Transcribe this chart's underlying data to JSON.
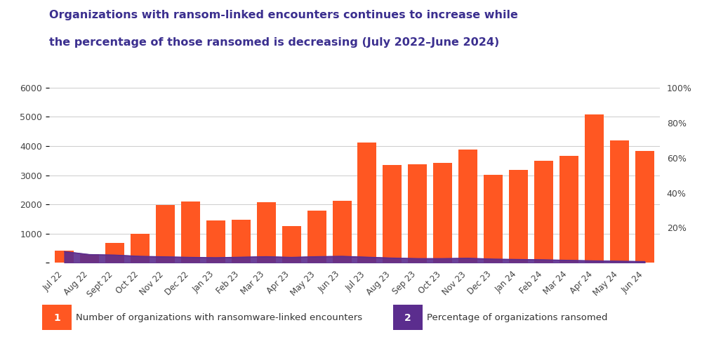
{
  "title_line1": "Organizations with ransom-linked encounters continues to increase while",
  "title_line2": "the percentage of those ransomed is decreasing (July 2022–June 2024)",
  "categories": [
    "Jul 22",
    "Aug 22",
    "Sept 22",
    "Oct 22",
    "Nov 22",
    "Dec 22",
    "Jan 23",
    "Feb 23",
    "Mar 23",
    "Apr 23",
    "May 23",
    "Jun 23",
    "Jul 23",
    "Aug 23",
    "Sep 23",
    "Oct 23",
    "Nov 23",
    "Dec 23",
    "Jan 24",
    "Feb 24",
    "Mar 24",
    "Apr 24",
    "May 24",
    "Jun 24"
  ],
  "bar_values": [
    420,
    300,
    680,
    1000,
    1980,
    2110,
    1450,
    1480,
    2080,
    1270,
    1780,
    2130,
    4120,
    3350,
    3380,
    3430,
    3880,
    3010,
    3190,
    3500,
    3670,
    5090,
    4200,
    3820
  ],
  "line_values": [
    6.5,
    4.8,
    4.5,
    3.8,
    3.5,
    3.2,
    3.0,
    3.3,
    3.6,
    3.2,
    3.6,
    3.8,
    3.3,
    2.8,
    2.5,
    2.5,
    2.7,
    2.2,
    2.0,
    1.8,
    1.5,
    1.2,
    1.0,
    0.8
  ],
  "bar_color": "#FF5722",
  "line_color": "#5B2D8E",
  "background_color": "#FFFFFF",
  "title_color": "#3B2F8F",
  "left_ylim": [
    0,
    6000
  ],
  "right_ylim": [
    0,
    100
  ],
  "left_yticks": [
    0,
    1000,
    2000,
    3000,
    4000,
    5000,
    6000
  ],
  "right_yticks": [
    0,
    20,
    40,
    60,
    80,
    100
  ],
  "legend1_label": "Number of organizations with ransomware-linked encounters",
  "legend2_label": "Percentage of organizations ransomed",
  "legend1_num": "1",
  "legend2_num": "2",
  "grid_color": "#CCCCCC"
}
